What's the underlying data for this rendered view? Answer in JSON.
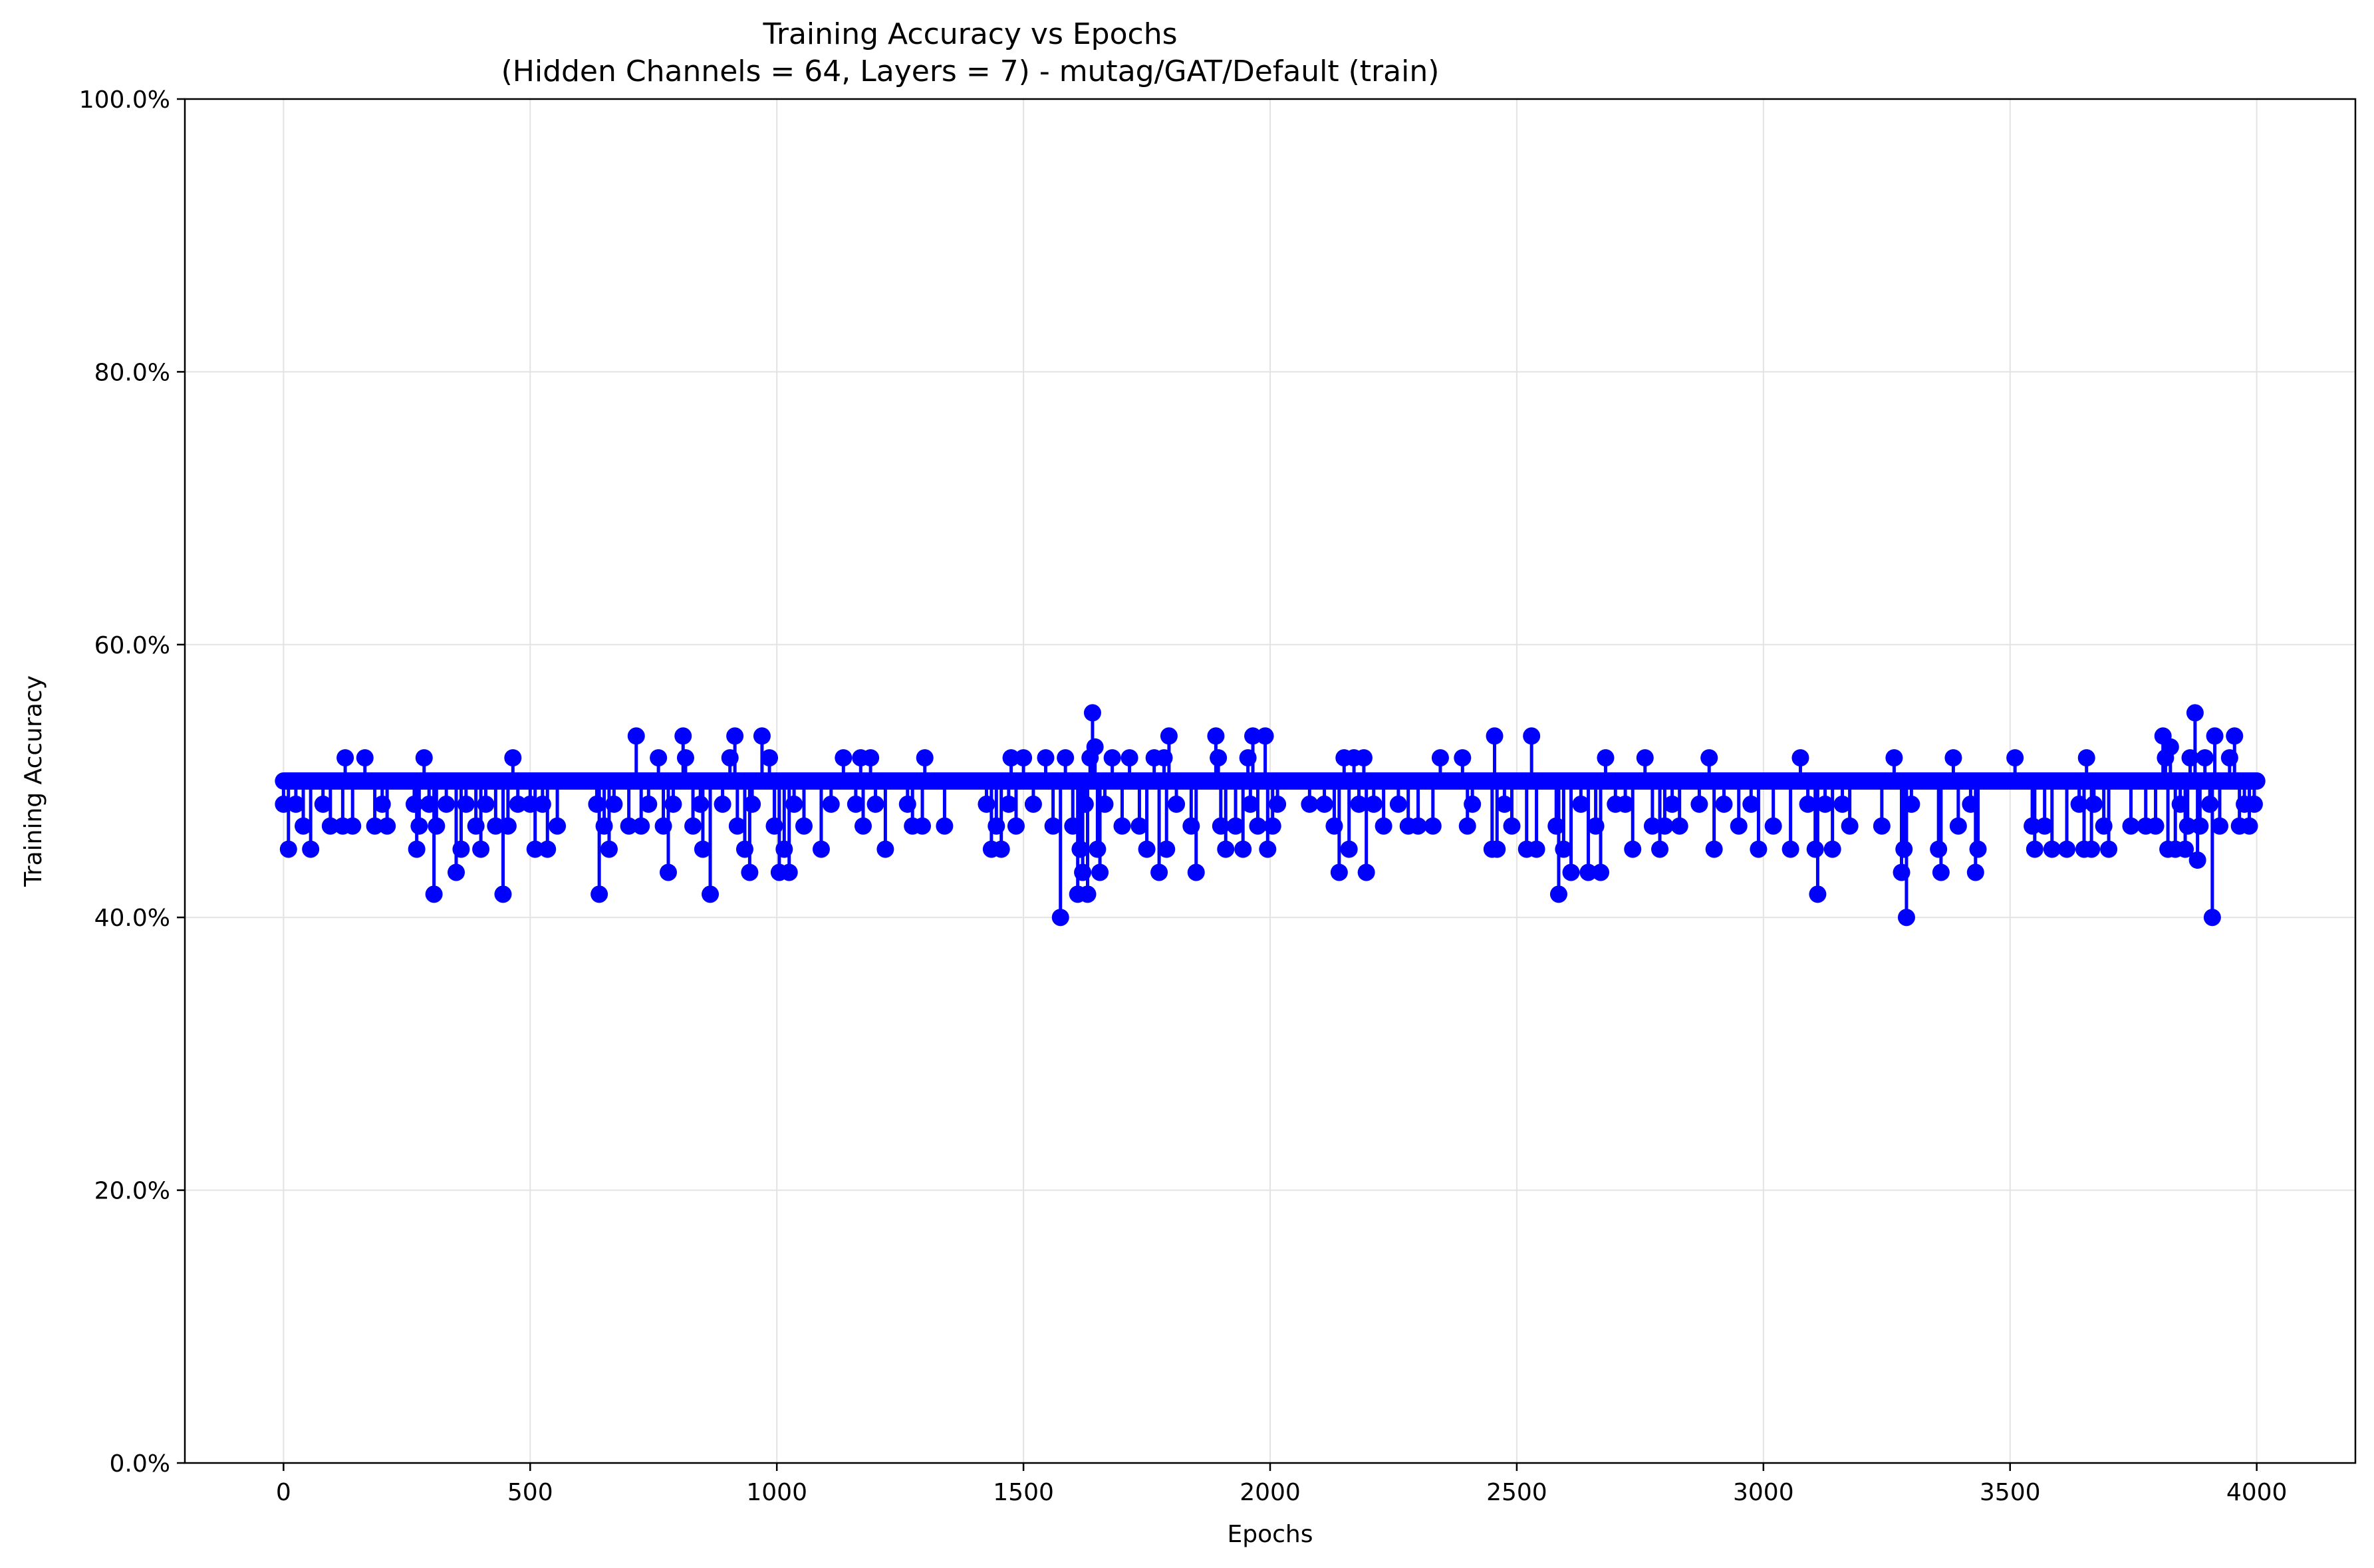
{
  "chart_data": {
    "type": "line",
    "title": "Training Accuracy vs Epochs",
    "subtitle": "(Hidden Channels = 64, Layers = 7) - mutag/GAT/Default (train)",
    "xlabel": "Epochs",
    "ylabel": "Training Accuracy",
    "xlim": [
      -200,
      4200
    ],
    "ylim": [
      0,
      100
    ],
    "x_ticks": [
      0,
      500,
      1000,
      1500,
      2000,
      2500,
      3000,
      3500,
      4000
    ],
    "x_tick_labels": [
      "0",
      "500",
      "1000",
      "1500",
      "2000",
      "2500",
      "3000",
      "3500",
      "4000"
    ],
    "y_ticks": [
      0,
      20,
      40,
      60,
      80,
      100
    ],
    "y_tick_labels": [
      "0.0%",
      "20.0%",
      "40.0%",
      "60.0%",
      "80.0%",
      "100.0%"
    ],
    "grid": true,
    "series": [
      {
        "color": "#0000ff",
        "marker": "circle",
        "baseline": 50.0,
        "x_range": [
          0,
          4000
        ],
        "deviations": [
          [
            0,
            48.3
          ],
          [
            10,
            45.0
          ],
          [
            25,
            48.3
          ],
          [
            40,
            46.7
          ],
          [
            55,
            45.0
          ],
          [
            80,
            48.3
          ],
          [
            95,
            46.7
          ],
          [
            120,
            46.7
          ],
          [
            125,
            51.7
          ],
          [
            140,
            46.7
          ],
          [
            165,
            51.7
          ],
          [
            185,
            46.7
          ],
          [
            200,
            48.3
          ],
          [
            210,
            46.7
          ],
          [
            265,
            48.3
          ],
          [
            270,
            45.0
          ],
          [
            275,
            46.7
          ],
          [
            285,
            51.7
          ],
          [
            295,
            48.3
          ],
          [
            305,
            41.7
          ],
          [
            310,
            46.7
          ],
          [
            330,
            48.3
          ],
          [
            350,
            43.3
          ],
          [
            360,
            45.0
          ],
          [
            370,
            48.3
          ],
          [
            390,
            46.7
          ],
          [
            400,
            45.0
          ],
          [
            410,
            48.3
          ],
          [
            430,
            46.7
          ],
          [
            445,
            41.7
          ],
          [
            455,
            46.7
          ],
          [
            465,
            51.7
          ],
          [
            475,
            48.3
          ],
          [
            500,
            48.3
          ],
          [
            510,
            45.0
          ],
          [
            525,
            48.3
          ],
          [
            535,
            45.0
          ],
          [
            555,
            46.7
          ],
          [
            635,
            48.3
          ],
          [
            640,
            41.7
          ],
          [
            650,
            46.7
          ],
          [
            660,
            45.0
          ],
          [
            670,
            48.3
          ],
          [
            700,
            46.7
          ],
          [
            715,
            53.3
          ],
          [
            725,
            46.7
          ],
          [
            740,
            48.3
          ],
          [
            760,
            51.7
          ],
          [
            770,
            46.7
          ],
          [
            780,
            43.3
          ],
          [
            790,
            48.3
          ],
          [
            810,
            53.3
          ],
          [
            815,
            51.7
          ],
          [
            830,
            46.7
          ],
          [
            845,
            48.3
          ],
          [
            850,
            45.0
          ],
          [
            865,
            41.7
          ],
          [
            890,
            48.3
          ],
          [
            905,
            51.7
          ],
          [
            915,
            53.3
          ],
          [
            920,
            46.7
          ],
          [
            935,
            45.0
          ],
          [
            945,
            43.3
          ],
          [
            950,
            48.3
          ],
          [
            970,
            53.3
          ],
          [
            985,
            51.7
          ],
          [
            995,
            46.7
          ],
          [
            1005,
            43.3
          ],
          [
            1015,
            45.0
          ],
          [
            1025,
            43.3
          ],
          [
            1035,
            48.3
          ],
          [
            1055,
            46.7
          ],
          [
            1090,
            45.0
          ],
          [
            1110,
            48.3
          ],
          [
            1135,
            51.7
          ],
          [
            1160,
            48.3
          ],
          [
            1170,
            51.7
          ],
          [
            1175,
            46.7
          ],
          [
            1190,
            51.7
          ],
          [
            1200,
            48.3
          ],
          [
            1220,
            45.0
          ],
          [
            1265,
            48.3
          ],
          [
            1275,
            46.7
          ],
          [
            1295,
            46.7
          ],
          [
            1300,
            51.7
          ],
          [
            1340,
            46.7
          ],
          [
            1425,
            48.3
          ],
          [
            1435,
            45.0
          ],
          [
            1445,
            46.7
          ],
          [
            1455,
            45.0
          ],
          [
            1470,
            48.3
          ],
          [
            1475,
            51.7
          ],
          [
            1485,
            46.7
          ],
          [
            1500,
            51.7
          ],
          [
            1520,
            48.3
          ],
          [
            1545,
            51.7
          ],
          [
            1560,
            46.7
          ],
          [
            1575,
            40.0
          ],
          [
            1585,
            51.7
          ],
          [
            1600,
            46.7
          ],
          [
            1610,
            41.7
          ],
          [
            1615,
            45.0
          ],
          [
            1620,
            43.3
          ],
          [
            1625,
            48.3
          ],
          [
            1630,
            41.7
          ],
          [
            1635,
            51.7
          ],
          [
            1640,
            55.0
          ],
          [
            1645,
            52.5
          ],
          [
            1650,
            45.0
          ],
          [
            1655,
            43.3
          ],
          [
            1665,
            48.3
          ],
          [
            1680,
            51.7
          ],
          [
            1700,
            46.7
          ],
          [
            1715,
            51.7
          ],
          [
            1735,
            46.7
          ],
          [
            1750,
            45.0
          ],
          [
            1765,
            51.7
          ],
          [
            1775,
            43.3
          ],
          [
            1785,
            51.7
          ],
          [
            1790,
            45.0
          ],
          [
            1795,
            53.3
          ],
          [
            1810,
            48.3
          ],
          [
            1840,
            46.7
          ],
          [
            1850,
            43.3
          ],
          [
            1890,
            53.3
          ],
          [
            1895,
            51.7
          ],
          [
            1900,
            46.7
          ],
          [
            1910,
            45.0
          ],
          [
            1930,
            46.7
          ],
          [
            1945,
            45.0
          ],
          [
            1955,
            51.7
          ],
          [
            1960,
            48.3
          ],
          [
            1965,
            53.3
          ],
          [
            1975,
            46.7
          ],
          [
            1990,
            53.3
          ],
          [
            1995,
            45.0
          ],
          [
            2005,
            46.7
          ],
          [
            2015,
            48.3
          ],
          [
            2080,
            48.3
          ],
          [
            2110,
            48.3
          ],
          [
            2130,
            46.7
          ],
          [
            2140,
            43.3
          ],
          [
            2150,
            51.7
          ],
          [
            2160,
            45.0
          ],
          [
            2170,
            51.7
          ],
          [
            2180,
            48.3
          ],
          [
            2190,
            51.7
          ],
          [
            2195,
            43.3
          ],
          [
            2210,
            48.3
          ],
          [
            2230,
            46.7
          ],
          [
            2260,
            48.3
          ],
          [
            2280,
            46.7
          ],
          [
            2300,
            46.7
          ],
          [
            2330,
            46.7
          ],
          [
            2345,
            51.7
          ],
          [
            2390,
            51.7
          ],
          [
            2400,
            46.7
          ],
          [
            2410,
            48.3
          ],
          [
            2450,
            45.0
          ],
          [
            2455,
            53.3
          ],
          [
            2460,
            45.0
          ],
          [
            2475,
            48.3
          ],
          [
            2490,
            46.7
          ],
          [
            2520,
            45.0
          ],
          [
            2530,
            53.3
          ],
          [
            2540,
            45.0
          ],
          [
            2580,
            46.7
          ],
          [
            2585,
            41.7
          ],
          [
            2595,
            45.0
          ],
          [
            2610,
            43.3
          ],
          [
            2630,
            48.3
          ],
          [
            2645,
            43.3
          ],
          [
            2660,
            46.7
          ],
          [
            2670,
            43.3
          ],
          [
            2680,
            51.7
          ],
          [
            2700,
            48.3
          ],
          [
            2720,
            48.3
          ],
          [
            2735,
            45.0
          ],
          [
            2760,
            51.7
          ],
          [
            2775,
            46.7
          ],
          [
            2790,
            45.0
          ],
          [
            2800,
            46.7
          ],
          [
            2815,
            48.3
          ],
          [
            2830,
            46.7
          ],
          [
            2870,
            48.3
          ],
          [
            2890,
            51.7
          ],
          [
            2900,
            45.0
          ],
          [
            2920,
            48.3
          ],
          [
            2950,
            46.7
          ],
          [
            2975,
            48.3
          ],
          [
            2990,
            45.0
          ],
          [
            3020,
            46.7
          ],
          [
            3055,
            45.0
          ],
          [
            3075,
            51.7
          ],
          [
            3090,
            48.3
          ],
          [
            3105,
            45.0
          ],
          [
            3110,
            41.7
          ],
          [
            3125,
            48.3
          ],
          [
            3140,
            45.0
          ],
          [
            3160,
            48.3
          ],
          [
            3175,
            46.7
          ],
          [
            3240,
            46.7
          ],
          [
            3265,
            51.7
          ],
          [
            3280,
            43.3
          ],
          [
            3285,
            45.0
          ],
          [
            3290,
            40.0
          ],
          [
            3300,
            48.3
          ],
          [
            3355,
            45.0
          ],
          [
            3360,
            43.3
          ],
          [
            3385,
            51.7
          ],
          [
            3395,
            46.7
          ],
          [
            3420,
            48.3
          ],
          [
            3430,
            43.3
          ],
          [
            3435,
            45.0
          ],
          [
            3510,
            51.7
          ],
          [
            3545,
            46.7
          ],
          [
            3550,
            45.0
          ],
          [
            3570,
            46.7
          ],
          [
            3585,
            45.0
          ],
          [
            3615,
            45.0
          ],
          [
            3640,
            48.3
          ],
          [
            3650,
            45.0
          ],
          [
            3655,
            51.7
          ],
          [
            3665,
            45.0
          ],
          [
            3670,
            48.3
          ],
          [
            3690,
            46.7
          ],
          [
            3700,
            45.0
          ],
          [
            3745,
            46.7
          ],
          [
            3775,
            46.7
          ],
          [
            3795,
            46.7
          ],
          [
            3810,
            53.3
          ],
          [
            3815,
            51.7
          ],
          [
            3820,
            45.0
          ],
          [
            3825,
            52.5
          ],
          [
            3835,
            45.0
          ],
          [
            3845,
            48.3
          ],
          [
            3855,
            45.0
          ],
          [
            3860,
            46.7
          ],
          [
            3865,
            51.7
          ],
          [
            3875,
            55.0
          ],
          [
            3880,
            44.2
          ],
          [
            3885,
            46.7
          ],
          [
            3895,
            51.7
          ],
          [
            3905,
            48.3
          ],
          [
            3910,
            40.0
          ],
          [
            3915,
            53.3
          ],
          [
            3925,
            46.7
          ],
          [
            3945,
            51.7
          ],
          [
            3955,
            53.3
          ],
          [
            3965,
            46.7
          ],
          [
            3975,
            48.3
          ],
          [
            3985,
            46.7
          ],
          [
            3995,
            48.3
          ],
          [
            4000,
            50.0
          ]
        ]
      }
    ]
  }
}
